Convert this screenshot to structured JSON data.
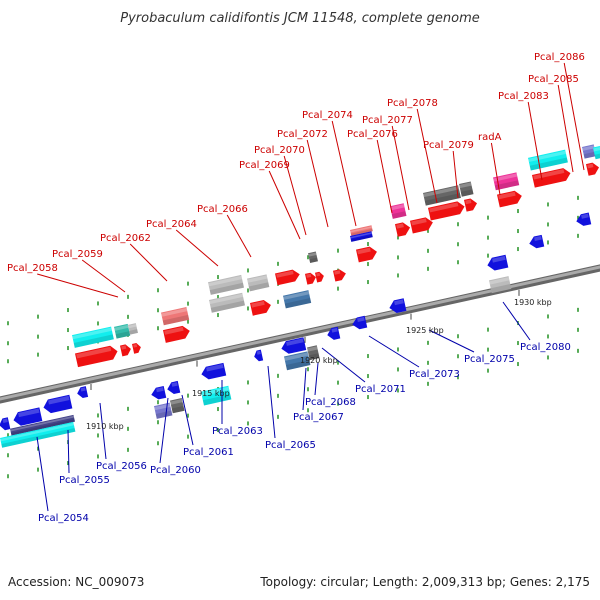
{
  "title": "Pyrobaculum calidifontis JCM 11548, complete genome",
  "accession_text": "Accession: NC_009073",
  "topology_text": "Topology: circular; Length: 2,009,313 bp; Genes: 2,175",
  "colors": {
    "top_label": "#cc0000",
    "bottom_label": "#0000aa",
    "red_gene": "#ee1111",
    "blue_gene": "#1111dd",
    "cyan_gene": "#11eeee",
    "pink_gene": "#ee3399",
    "gray_gene": "#bbbbbb",
    "dark_gray_gene": "#666666",
    "backbone": "#888888",
    "tick": "#118811"
  },
  "kbp_marks": [
    "1910 kbp",
    "1915 kbp",
    "1920 kbp",
    "1925 kbp",
    "1930 kbp"
  ],
  "top_labels": [
    "Pcal_2058",
    "Pcal_2059",
    "Pcal_2062",
    "Pcal_2064",
    "Pcal_2066",
    "Pcal_2069",
    "Pcal_2070",
    "Pcal_2072",
    "Pcal_2074",
    "Pcal_2076",
    "Pcal_2077",
    "Pcal_2078",
    "Pcal_2079",
    "radA",
    "Pcal_2083",
    "Pcal_2085",
    "Pcal_2086"
  ],
  "bottom_labels": [
    "Pcal_2054",
    "Pcal_2055",
    "Pcal_2056",
    "Pcal_2060",
    "Pcal_2061",
    "Pcal_2063",
    "Pcal_2065",
    "Pcal_2067",
    "Pcal_2068",
    "Pcal_2071",
    "Pcal_2073",
    "Pcal_2075",
    "Pcal_2080"
  ]
}
